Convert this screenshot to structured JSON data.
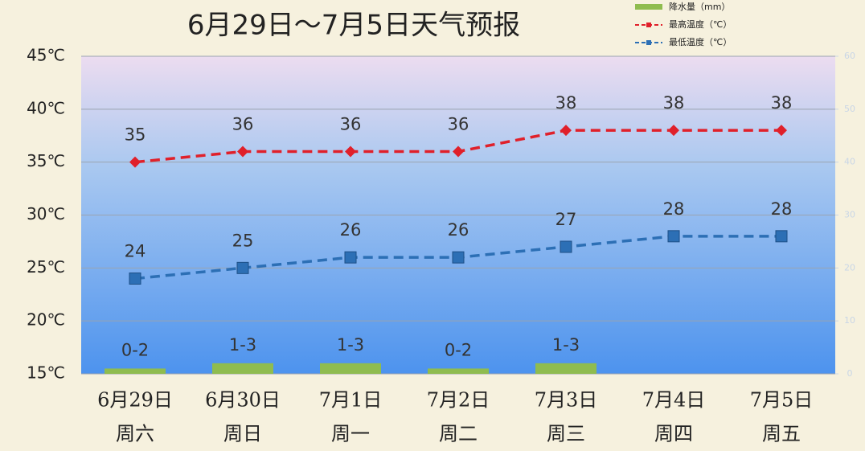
{
  "chart_data": {
    "type": "combo",
    "title": "6月29日～7月5日天气预报",
    "categories": [
      "6月29日",
      "6月30日",
      "7月1日",
      "7月2日",
      "7月3日",
      "7月4日",
      "7月5日"
    ],
    "weekdays": [
      "周六",
      "周日",
      "周一",
      "周二",
      "周三",
      "周四",
      "周五"
    ],
    "ylim": [
      15,
      45
    ],
    "yticks": [
      {
        "value": 15,
        "label": "15℃"
      },
      {
        "value": 20,
        "label": "20℃"
      },
      {
        "value": 25,
        "label": "25℃"
      },
      {
        "value": 30,
        "label": "30℃"
      },
      {
        "value": 35,
        "label": "35℃"
      },
      {
        "value": 40,
        "label": "40℃"
      },
      {
        "value": 45,
        "label": "45℃"
      }
    ],
    "y2lim": [
      0,
      60
    ],
    "y2ticks": [
      0,
      10,
      20,
      30,
      40,
      50,
      60
    ],
    "grid": true,
    "legend": "top-right",
    "series": [
      {
        "name": "降水量（mm）",
        "type": "bar",
        "axis": "y2",
        "color": "#8fbc4f",
        "values": [
          1,
          2,
          2,
          1,
          2,
          null,
          null
        ],
        "value_labels": [
          "0-2",
          "1-3",
          "1-3",
          "0-2",
          "1-3",
          null,
          null
        ]
      },
      {
        "name": "最高温度（℃）",
        "type": "line",
        "marker": "diamond",
        "color": "#e0202a",
        "values": [
          35,
          36,
          36,
          36,
          38,
          38,
          38
        ]
      },
      {
        "name": "最低温度（℃）",
        "type": "line",
        "marker": "square",
        "color": "#2c6fb5",
        "values": [
          24,
          25,
          26,
          26,
          27,
          28,
          28
        ]
      }
    ]
  }
}
